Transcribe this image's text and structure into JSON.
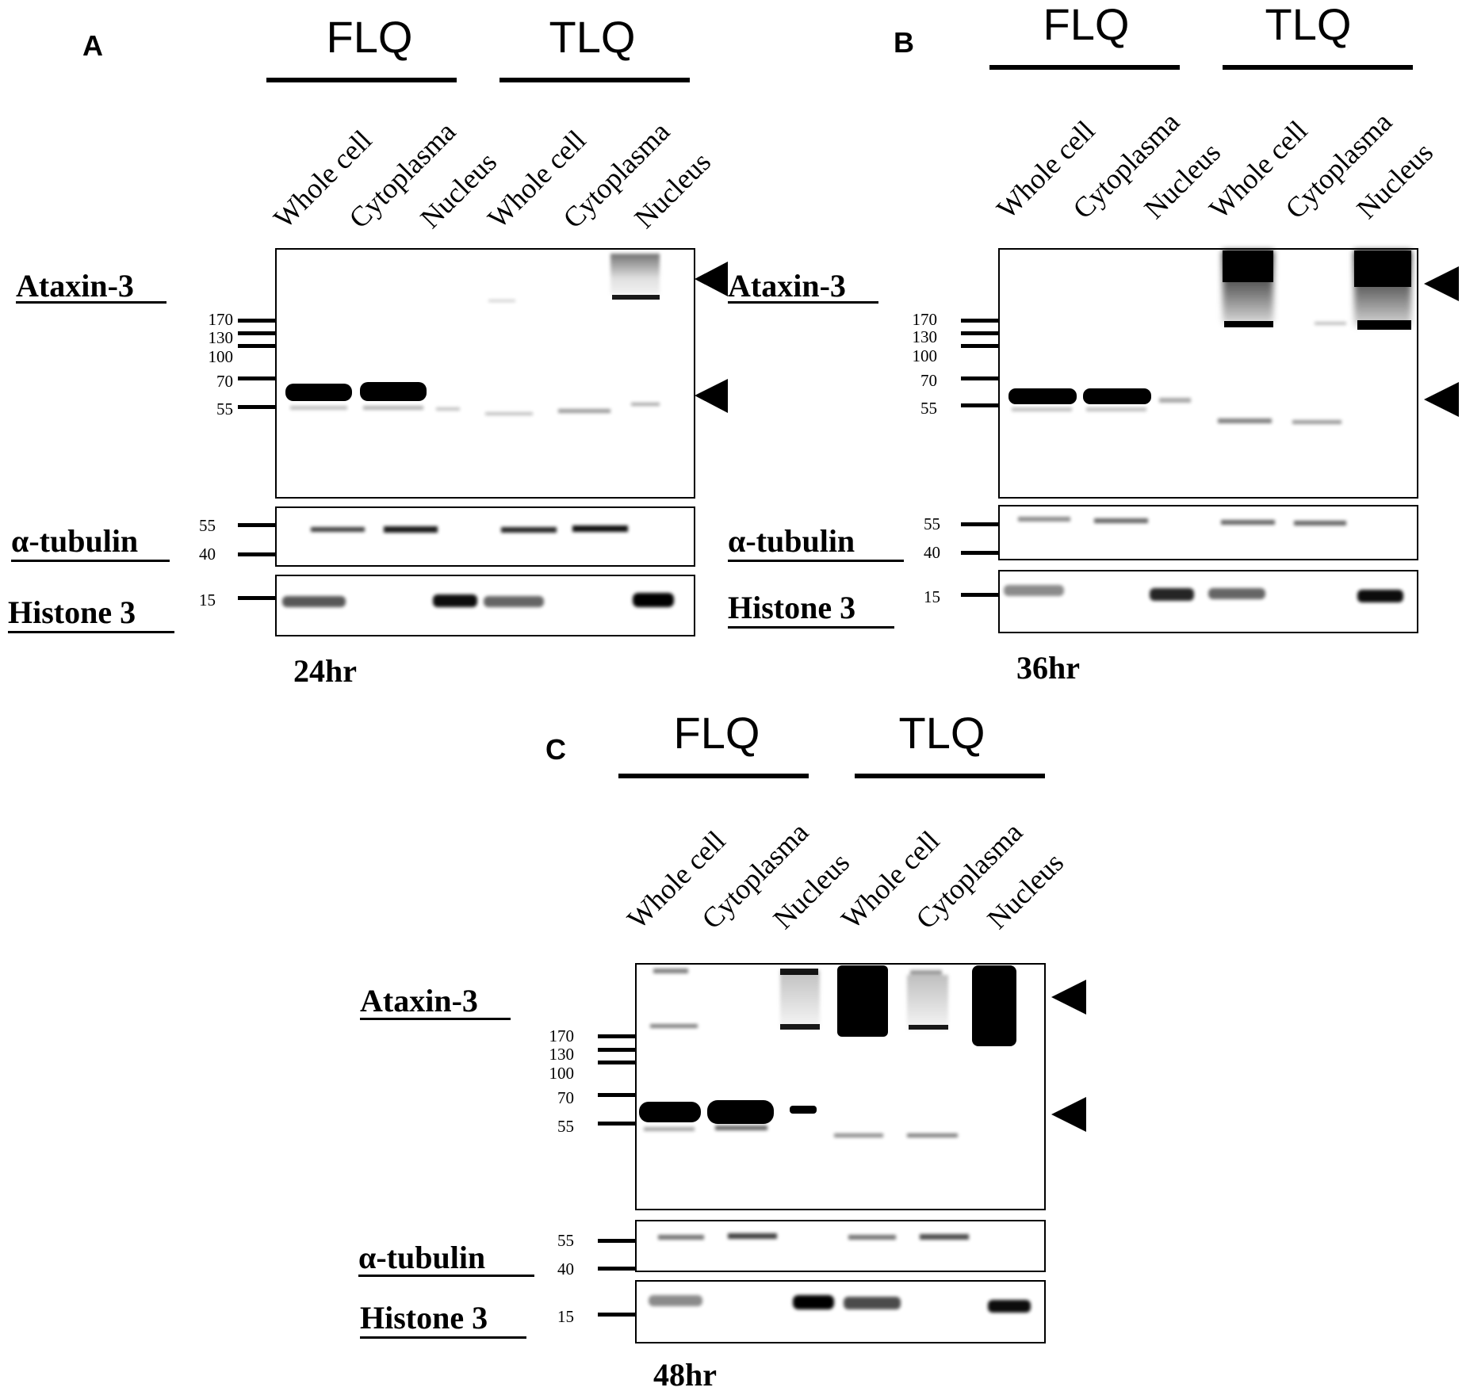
{
  "figure": {
    "panels": [
      {
        "letter": "A",
        "groups": [
          "FLQ",
          "TLQ"
        ],
        "lanes": [
          "Whole cell",
          "Cytoplasma",
          "Nucleus",
          "Whole cell",
          "Cytoplasma",
          "Nucleus"
        ],
        "blots": [
          "Ataxin-3",
          "α-tubulin",
          "Histone 3"
        ],
        "ataxin_markers": [
          "170",
          "130",
          "100",
          "70",
          "55"
        ],
        "tubulin_markers": [
          "55",
          "40"
        ],
        "histone_markers": [
          "15"
        ],
        "timepoint": "24hr"
      },
      {
        "letter": "B",
        "groups": [
          "FLQ",
          "TLQ"
        ],
        "lanes": [
          "Whole cell",
          "Cytoplasma",
          "Nucleus",
          "Whole cell",
          "Cytoplasma",
          "Nucleus"
        ],
        "blots": [
          "Ataxin-3",
          "α-tubulin",
          "Histone 3"
        ],
        "ataxin_markers": [
          "170",
          "130",
          "100",
          "70",
          "55"
        ],
        "tubulin_markers": [
          "55",
          "40"
        ],
        "histone_markers": [
          "15"
        ],
        "timepoint": "36hr"
      },
      {
        "letter": "C",
        "groups": [
          "FLQ",
          "TLQ"
        ],
        "lanes": [
          "Whole cell",
          "Cytoplasma",
          "Nucleus",
          "Whole cell",
          "Cytoplasma",
          "Nucleus"
        ],
        "blots": [
          "Ataxin-3",
          "α-tubulin",
          "Histone 3"
        ],
        "ataxin_markers": [
          "170",
          "130",
          "100",
          "70",
          "55"
        ],
        "tubulin_markers": [
          "55",
          "40"
        ],
        "histone_markers": [
          "15"
        ],
        "timepoint": "48hr"
      }
    ]
  }
}
